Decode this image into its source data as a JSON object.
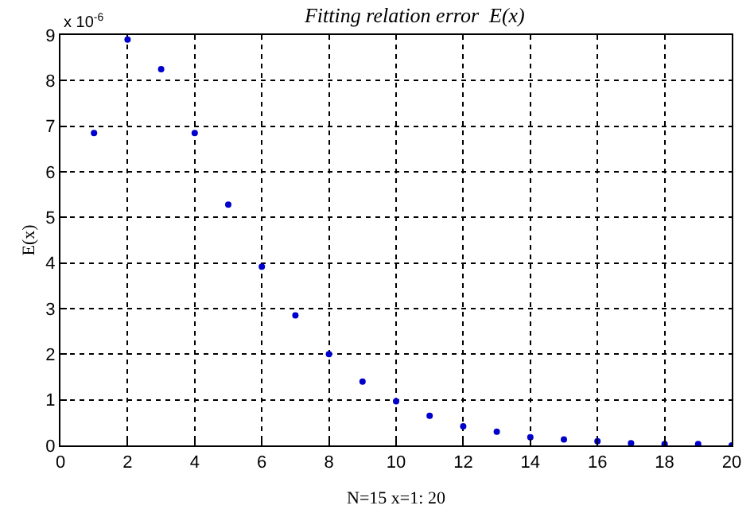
{
  "chart_data": {
    "type": "scatter",
    "title": "Fitting relation error  E(x)",
    "xlabel": "N=15 x=1: 20",
    "ylabel": "E(x)",
    "annotations": [
      "x 10$^{-6}$"
    ],
    "x": [
      1,
      2,
      3,
      4,
      5,
      6,
      7,
      8,
      9,
      10,
      11,
      12,
      13,
      14,
      15,
      16,
      17,
      18,
      19,
      20
    ],
    "series": [
      {
        "color": "#0000cc",
        "values": [
          6.85,
          8.9,
          8.25,
          6.85,
          5.28,
          3.92,
          2.85,
          2.0,
          1.4,
          0.97,
          0.65,
          0.42,
          0.3,
          0.18,
          0.13,
          0.09,
          0.05,
          0.03,
          0.03,
          0.0
        ]
      }
    ],
    "xlim": [
      0,
      20
    ],
    "xticks": [
      0,
      2,
      4,
      6,
      8,
      10,
      12,
      14,
      16,
      18,
      20
    ],
    "ylim": [
      0,
      9
    ],
    "yticks": [
      0,
      1,
      2,
      3,
      4,
      5,
      6,
      7,
      8,
      9
    ],
    "grid": true,
    "marker": "circle"
  }
}
